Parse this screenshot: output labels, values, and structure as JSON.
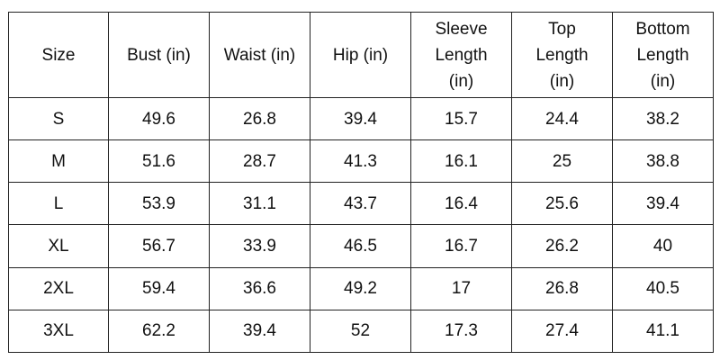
{
  "table": {
    "headers": [
      "Size",
      "Bust (in)",
      "Waist (in)",
      "Hip (in)",
      "Sleeve\nLength\n(in)",
      "Top\nLength\n(in)",
      "Bottom\nLength\n(in)"
    ],
    "rows": [
      [
        "S",
        "49.6",
        "26.8",
        "39.4",
        "15.7",
        "24.4",
        "38.2"
      ],
      [
        "M",
        "51.6",
        "28.7",
        "41.3",
        "16.1",
        "25",
        "38.8"
      ],
      [
        "L",
        "53.9",
        "31.1",
        "43.7",
        "16.4",
        "25.6",
        "39.4"
      ],
      [
        "XL",
        "56.7",
        "33.9",
        "46.5",
        "16.7",
        "26.2",
        "40"
      ],
      [
        "2XL",
        "59.4",
        "36.6",
        "49.2",
        "17",
        "26.8",
        "40.5"
      ],
      [
        "3XL",
        "62.2",
        "39.4",
        "52",
        "17.3",
        "27.4",
        "41.1"
      ]
    ]
  }
}
